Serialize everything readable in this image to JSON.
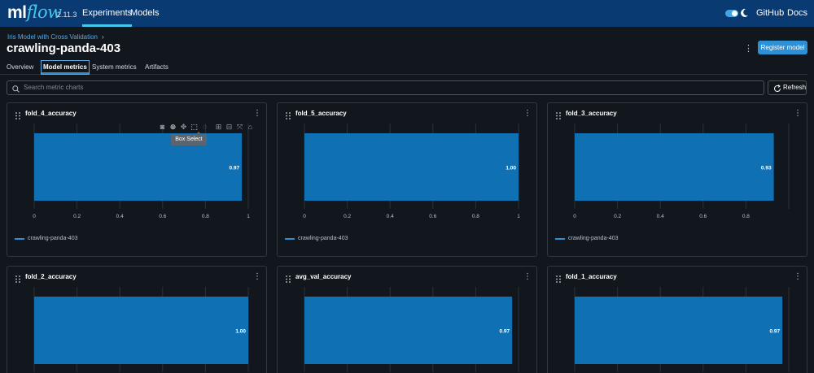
{
  "app": {
    "logo_ml": "ml",
    "logo_flow": "flow",
    "version": "2.11.3",
    "nav_experiments": "Experiments",
    "nav_models": "Models",
    "nav_github": "GitHub",
    "nav_docs": "Docs",
    "theme_toggle_on": true
  },
  "header": {
    "breadcrumb": "Iris Model with Cross Validation",
    "title": "crawling-panda-403",
    "register_label": "Register model"
  },
  "tabs": [
    {
      "label": "Overview",
      "active": false
    },
    {
      "label": "Model metrics",
      "active": true
    },
    {
      "label": "System metrics",
      "active": false
    },
    {
      "label": "Artifacts",
      "active": false
    }
  ],
  "search": {
    "placeholder": "Search metric charts",
    "refresh_label": "Refresh"
  },
  "modebar": {
    "icons": [
      "camera-icon",
      "zoom-icon",
      "pan-icon",
      "box-select-icon",
      "lasso-icon",
      "zoom-in-icon",
      "zoom-out-icon",
      "autoscale-icon",
      "reset-axes-icon"
    ],
    "active": "box-select-icon",
    "tooltip": "Box Select"
  },
  "colors": {
    "bar": "#0f71b4",
    "accent": "#2d8fd5",
    "topbar": "#0a3a72"
  },
  "chart_data": [
    {
      "type": "bar",
      "orientation": "horizontal",
      "title": "fold_4_accuracy",
      "categories": [
        "crawling-panda-403"
      ],
      "values": [
        0.97
      ],
      "value_label": "0.97",
      "xlim": [
        0,
        1
      ],
      "x_ticks": [
        "0",
        "0.2",
        "0.4",
        "0.6",
        "0.8",
        "1"
      ],
      "legend": [
        "crawling-panda-403"
      ]
    },
    {
      "type": "bar",
      "orientation": "horizontal",
      "title": "fold_5_accuracy",
      "categories": [
        "crawling-panda-403"
      ],
      "values": [
        1.0
      ],
      "value_label": "1.00",
      "xlim": [
        0,
        1
      ],
      "x_ticks": [
        "0",
        "0.2",
        "0.4",
        "0.6",
        "0.8",
        "1"
      ],
      "legend": [
        "crawling-panda-403"
      ]
    },
    {
      "type": "bar",
      "orientation": "horizontal",
      "title": "fold_3_accuracy",
      "categories": [
        "crawling-panda-403"
      ],
      "values": [
        0.93
      ],
      "value_label": "0.93",
      "xlim": [
        0,
        1
      ],
      "x_ticks": [
        "0",
        "0.2",
        "0.4",
        "0.6",
        "0.8"
      ],
      "legend": [
        "crawling-panda-403"
      ]
    },
    {
      "type": "bar",
      "orientation": "horizontal",
      "title": "fold_2_accuracy",
      "categories": [
        "crawling-panda-403"
      ],
      "values": [
        1.0
      ],
      "value_label": "1.00",
      "xlim": [
        0,
        1
      ],
      "x_ticks": [],
      "legend": []
    },
    {
      "type": "bar",
      "orientation": "horizontal",
      "title": "avg_val_accuracy",
      "categories": [
        "crawling-panda-403"
      ],
      "values": [
        0.97
      ],
      "value_label": "0.97",
      "xlim": [
        0,
        1
      ],
      "x_ticks": [],
      "legend": []
    },
    {
      "type": "bar",
      "orientation": "horizontal",
      "title": "fold_1_accuracy",
      "categories": [
        "crawling-panda-403"
      ],
      "values": [
        0.97
      ],
      "value_label": "0.97",
      "xlim": [
        0,
        1
      ],
      "x_ticks": [],
      "legend": []
    }
  ]
}
